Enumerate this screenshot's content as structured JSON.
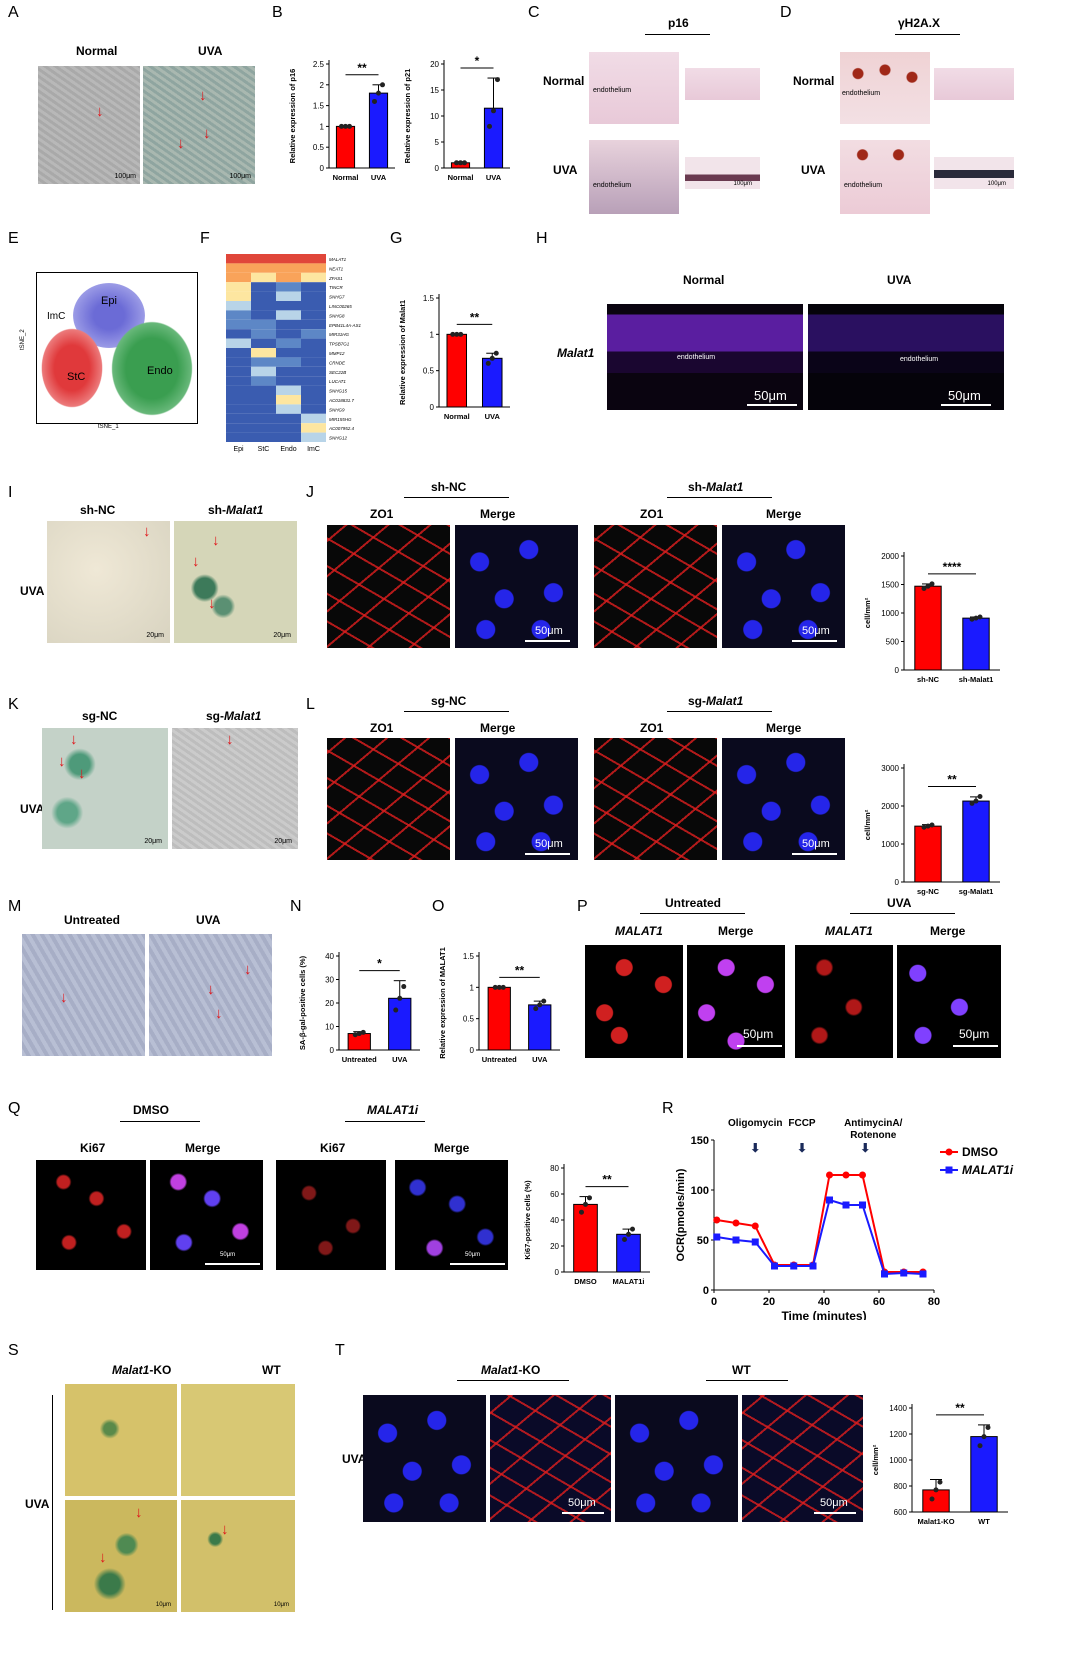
{
  "panels": {
    "A": {
      "letter": "A",
      "normal": "Normal",
      "uva": "UVA",
      "scale": "100μm"
    },
    "B": {
      "letter": "B"
    },
    "C": {
      "letter": "C",
      "title": "p16",
      "normal": "Normal",
      "uva": "UVA",
      "endothelium": "endothelium",
      "scale": "100μm"
    },
    "D": {
      "letter": "D",
      "title": "γH2A.X",
      "normal": "Normal",
      "uva": "UVA",
      "endothelium": "endothelium",
      "scale": "100μm"
    },
    "E": {
      "letter": "E",
      "labels": [
        "Epi",
        "ImC",
        "StC",
        "Endo"
      ],
      "xaxis": "tSNE_1",
      "yaxis": "tSNE_2"
    },
    "F": {
      "letter": "F",
      "genes": [
        "MALAT1",
        "NEAT1",
        "ZFAS1",
        "TINCR",
        "SNHG7",
        "LINC00265",
        "SNHG8",
        "EPB41L4A-AS1",
        "MIR31HG",
        "TPSB7G1",
        "MMP12",
        "CRNDE",
        "SEC22B",
        "LUCAT1",
        "SNHG15",
        "AC018831.7",
        "SNHG9",
        "MIR155HG",
        "AC007952.4",
        "SNHG12"
      ],
      "columns": [
        "Epi",
        "StC",
        "Endo",
        "ImC"
      ]
    },
    "G": {
      "letter": "G"
    },
    "H": {
      "letter": "H",
      "normal": "Normal",
      "uva": "UVA",
      "gene": "Malat1",
      "endothelium": "endothelium",
      "scale": "50μm"
    },
    "I": {
      "letter": "I",
      "left": "sh-NC",
      "right_prefix": "sh-",
      "right_gene": "Malat1",
      "row": "UVA",
      "scale": "20μm"
    },
    "J": {
      "letter": "J",
      "left": "sh-NC",
      "right_prefix": "sh-",
      "right_gene": "Malat1",
      "zo1": "ZO1",
      "merge": "Merge",
      "scale": "50μm"
    },
    "K": {
      "letter": "K",
      "left": "sg-NC",
      "right_prefix": "sg-",
      "right_gene": "Malat1",
      "row": "UVA",
      "scale": "20μm"
    },
    "L": {
      "letter": "L",
      "left": "sg-NC",
      "right_prefix": "sg-",
      "right_gene": "Malat1",
      "zo1": "ZO1",
      "merge": "Merge",
      "scale": "50μm"
    },
    "M": {
      "letter": "M",
      "left": "Untreated",
      "right": "UVA"
    },
    "N": {
      "letter": "N"
    },
    "O": {
      "letter": "O"
    },
    "P": {
      "letter": "P",
      "left": "Untreated",
      "right": "UVA",
      "gene": "MALAT1",
      "merge": "Merge",
      "scale": "50μm"
    },
    "Q": {
      "letter": "Q",
      "left": "DMSO",
      "right": "MALAT1i",
      "ki67": "Ki67",
      "merge": "Merge",
      "scale": "50μm"
    },
    "R": {
      "letter": "R",
      "oligo": "Oligomycin",
      "fccp": "FCCP",
      "anti": "AntimycinA/\nRotenone"
    },
    "S": {
      "letter": "S",
      "left_gene": "Malat1",
      "left_suffix": "-KO",
      "right": "WT",
      "row": "UVA",
      "scale": "10μm"
    },
    "T": {
      "letter": "T",
      "left_gene": "Malat1",
      "left_suffix": "-KO",
      "right": "WT",
      "row": "UVA",
      "scale": "50μm"
    }
  },
  "colors": {
    "red": "#ff0000",
    "blue": "#1a1aff",
    "cluster_epi": "#6b6bd6",
    "cluster_stc": "#e0393b",
    "cluster_endo": "#3a9e50",
    "cluster_imc": "#333333"
  },
  "chart_data": [
    {
      "id": "B1",
      "type": "bar",
      "categories": [
        "Normal",
        "UVA"
      ],
      "values": [
        1.0,
        1.8
      ],
      "ylabel": "Relative expression of p16",
      "ylim": [
        0,
        2.5
      ],
      "yticks": [
        0,
        0.5,
        1.0,
        1.5,
        2.0,
        2.5
      ],
      "sig": "**",
      "points": [
        [
          1,
          1,
          1
        ],
        [
          1.6,
          1.8,
          2.0
        ]
      ],
      "err": [
        0,
        0.2
      ]
    },
    {
      "id": "B2",
      "type": "bar",
      "categories": [
        "Normal",
        "UVA"
      ],
      "values": [
        1.0,
        11.5
      ],
      "ylabel": "Relative expression of p21",
      "ylim": [
        0,
        20
      ],
      "yticks": [
        0,
        5,
        10,
        15,
        20
      ],
      "sig": "*",
      "points": [
        [
          1,
          1,
          1
        ],
        [
          8,
          11,
          17
        ]
      ],
      "err": [
        0.2,
        5.8
      ]
    },
    {
      "id": "G",
      "type": "bar",
      "categories": [
        "Normal",
        "UVA"
      ],
      "values": [
        1.0,
        0.67
      ],
      "ylabel": "Relative expression of Malat1",
      "ylim": [
        0,
        1.5
      ],
      "yticks": [
        0.0,
        0.5,
        1.0,
        1.5
      ],
      "sig": "**",
      "points": [
        [
          1,
          1,
          1
        ],
        [
          0.6,
          0.67,
          0.74
        ]
      ],
      "err": [
        0,
        0.07
      ]
    },
    {
      "id": "J",
      "type": "bar",
      "categories": [
        "sh-NC",
        "sh-Malat1"
      ],
      "values": [
        1470,
        910
      ],
      "ylabel": "cell/mm²",
      "ylim": [
        0,
        2000
      ],
      "yticks": [
        0,
        500,
        1000,
        1500,
        2000
      ],
      "sig": "****",
      "points": [
        [
          1430,
          1470,
          1510
        ],
        [
          890,
          910,
          930
        ]
      ],
      "err": [
        40,
        20
      ]
    },
    {
      "id": "L",
      "type": "bar",
      "categories": [
        "sg-NC",
        "sg-Malat1"
      ],
      "values": [
        1470,
        2130
      ],
      "ylabel": "cell/mm²",
      "ylim": [
        0,
        3000
      ],
      "yticks": [
        0,
        1000,
        2000,
        3000
      ],
      "sig": "**",
      "points": [
        [
          1440,
          1470,
          1500
        ],
        [
          2070,
          2130,
          2250
        ]
      ],
      "err": [
        40,
        110
      ]
    },
    {
      "id": "N",
      "type": "bar",
      "categories": [
        "Untreated",
        "UVA"
      ],
      "values": [
        7,
        22
      ],
      "ylabel": "SA-β-gal-positive cells (%)",
      "ylim": [
        0,
        40
      ],
      "yticks": [
        0,
        10,
        20,
        30,
        40
      ],
      "sig": "*",
      "points": [
        [
          6.5,
          7,
          7.5
        ],
        [
          17,
          22,
          27
        ]
      ],
      "err": [
        0.8,
        7.5
      ]
    },
    {
      "id": "O",
      "type": "bar",
      "categories": [
        "Untreated",
        "UVA"
      ],
      "values": [
        1.0,
        0.72
      ],
      "ylabel": "Relative expression of MALAT1",
      "ylim": [
        0,
        1.5
      ],
      "yticks": [
        0.0,
        0.5,
        1.0,
        1.5
      ],
      "sig": "**",
      "points": [
        [
          1,
          1,
          1
        ],
        [
          0.66,
          0.72,
          0.78
        ]
      ],
      "err": [
        0,
        0.06
      ]
    },
    {
      "id": "Q",
      "type": "bar",
      "categories": [
        "DMSO",
        "MALAT1i"
      ],
      "values": [
        52,
        29
      ],
      "ylabel": "Ki67-positive cells (%)",
      "ylim": [
        0,
        80
      ],
      "yticks": [
        0,
        20,
        40,
        60,
        80
      ],
      "sig": "**",
      "points": [
        [
          46,
          52,
          57
        ],
        [
          25,
          29,
          33
        ]
      ],
      "err": [
        6,
        4
      ]
    },
    {
      "id": "T",
      "type": "bar",
      "categories": [
        "Malat1-KO",
        "WT"
      ],
      "values": [
        770,
        1180
      ],
      "ylabel": "cell/mm²",
      "ylim": [
        600,
        1400
      ],
      "yticks": [
        600,
        800,
        1000,
        1200,
        1400
      ],
      "sig": "**",
      "points": [
        [
          700,
          770,
          830
        ],
        [
          1110,
          1180,
          1250
        ]
      ],
      "err": [
        80,
        90
      ]
    },
    {
      "id": "R",
      "type": "line",
      "xlabel": "Time (minutes)",
      "ylabel": "OCR(pmoles/min)",
      "xlim": [
        0,
        80
      ],
      "ylim": [
        0,
        150
      ],
      "xticks": [
        0,
        20,
        40,
        60,
        80
      ],
      "yticks": [
        0,
        50,
        100,
        150
      ],
      "x": [
        1,
        8,
        15,
        22,
        29,
        36,
        42,
        48,
        54,
        62,
        69,
        76
      ],
      "series": [
        {
          "name": "DMSO",
          "values": [
            70,
            67,
            64,
            25,
            25,
            25,
            115,
            115,
            115,
            18,
            18,
            18
          ]
        },
        {
          "name": "MALAT1i",
          "values": [
            53,
            50,
            48,
            24,
            24,
            24,
            90,
            85,
            85,
            16,
            17,
            16
          ]
        }
      ]
    }
  ]
}
